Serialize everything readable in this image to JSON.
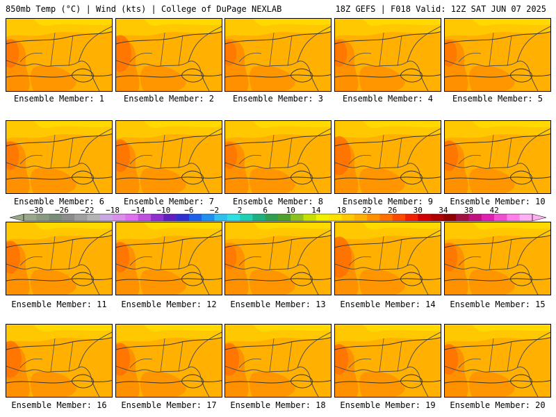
{
  "header": {
    "left_title": "850mb Temp (°C) | Wind (kts) | College of DuPage NEXLAB",
    "right_title": "18Z GEFS | F018 Valid: 12Z SAT JUN 07 2025"
  },
  "panels": [
    {
      "label": "Ensemble Member: 1",
      "hot": 0.35
    },
    {
      "label": "Ensemble Member: 2",
      "hot": 0.55
    },
    {
      "label": "Ensemble Member: 3",
      "hot": 0.25
    },
    {
      "label": "Ensemble Member: 4",
      "hot": 0.3
    },
    {
      "label": "Ensemble Member: 5",
      "hot": 0.3
    },
    {
      "label": "Ensemble Member: 6",
      "hot": 0.35
    },
    {
      "label": "Ensemble Member: 7",
      "hot": 0.45
    },
    {
      "label": "Ensemble Member: 8",
      "hot": 0.3
    },
    {
      "label": "Ensemble Member: 9",
      "hot": 0.6
    },
    {
      "label": "Ensemble Member: 10",
      "hot": 0.4
    },
    {
      "label": "Ensemble Member: 11",
      "hot": 0.45
    },
    {
      "label": "Ensemble Member: 12",
      "hot": 0.4
    },
    {
      "label": "Ensemble Member: 13",
      "hot": 0.25
    },
    {
      "label": "Ensemble Member: 14",
      "hot": 0.65
    },
    {
      "label": "Ensemble Member: 15",
      "hot": 0.35
    },
    {
      "label": "Ensemble Member: 16",
      "hot": 0.55
    },
    {
      "label": "Ensemble Member: 17",
      "hot": 0.45
    },
    {
      "label": "Ensemble Member: 18",
      "hot": 0.45
    },
    {
      "label": "Ensemble Member: 19",
      "hot": 0.4
    },
    {
      "label": "Ensemble Member: 20",
      "hot": 0.4
    }
  ],
  "colorbar": {
    "labels": [
      "−30",
      "−26",
      "−22",
      "−18",
      "−14",
      "−10",
      "−6",
      "−2",
      "2",
      "6",
      "10",
      "14",
      "18",
      "22",
      "26",
      "30",
      "34",
      "38",
      "42"
    ],
    "colors": [
      "#9aa88a",
      "#8a9a82",
      "#7a8c7a",
      "#8c8c8c",
      "#a0a0a0",
      "#b4b4b4",
      "#c8a8e0",
      "#d890e8",
      "#e070f0",
      "#c050e0",
      "#9030d0",
      "#6020c0",
      "#3030d0",
      "#2060e8",
      "#2090f0",
      "#30c0f0",
      "#30e0e0",
      "#20d0b0",
      "#20b080",
      "#30a050",
      "#50a030",
      "#90c020",
      "#c8e000",
      "#f0f000",
      "#ffe000",
      "#ffc800",
      "#ffb000",
      "#ff9000",
      "#ff7000",
      "#ff4800",
      "#f02000",
      "#d00000",
      "#b00000",
      "#900000",
      "#a01040",
      "#c01080",
      "#e020b0",
      "#f050d0",
      "#ff80e8",
      "#ffb0f0"
    ]
  },
  "map_colors": {
    "base": "#ffb000",
    "warm": "#ff9000",
    "hot": "#ff7000",
    "cool": "#ffc800",
    "coolest": "#ffe000",
    "line": "#505050"
  }
}
